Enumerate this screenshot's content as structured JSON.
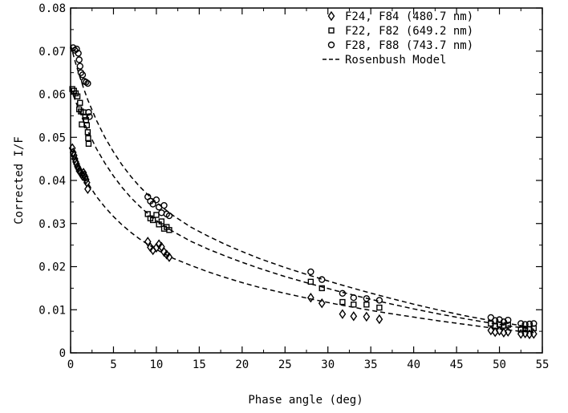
{
  "chart_data": {
    "type": "scatter",
    "title": "",
    "xlabel": "Phase angle (deg)",
    "ylabel": "Corrected I/F",
    "xlim": [
      0,
      55
    ],
    "ylim": [
      0,
      0.08
    ],
    "x_ticks": [
      "0",
      "5",
      "10",
      "15",
      "20",
      "25",
      "30",
      "35",
      "40",
      "45",
      "50",
      "55"
    ],
    "y_ticks": [
      "0",
      "0.01",
      "0.02",
      "0.03",
      "0.04",
      "0.05",
      "0.06",
      "0.07",
      "0.08"
    ],
    "grid": false,
    "legend_position": "top-right",
    "series": [
      {
        "name": "F24, F84 (480.7 nm)",
        "marker": "diamond",
        "points": [
          [
            0.2,
            0.0475
          ],
          [
            0.3,
            0.0465
          ],
          [
            0.4,
            0.0458
          ],
          [
            0.5,
            0.045
          ],
          [
            0.6,
            0.0443
          ],
          [
            0.7,
            0.0438
          ],
          [
            0.8,
            0.0432
          ],
          [
            0.9,
            0.0428
          ],
          [
            1.0,
            0.0422
          ],
          [
            1.1,
            0.042
          ],
          [
            1.2,
            0.0418
          ],
          [
            1.3,
            0.0414
          ],
          [
            1.4,
            0.041
          ],
          [
            1.5,
            0.0418
          ],
          [
            1.6,
            0.0412
          ],
          [
            1.7,
            0.0408
          ],
          [
            1.8,
            0.0402
          ],
          [
            1.9,
            0.0395
          ],
          [
            2.0,
            0.038
          ],
          [
            9.0,
            0.0258
          ],
          [
            9.3,
            0.0245
          ],
          [
            9.6,
            0.0238
          ],
          [
            10.0,
            0.0244
          ],
          [
            10.3,
            0.0252
          ],
          [
            10.6,
            0.0246
          ],
          [
            10.9,
            0.0234
          ],
          [
            11.2,
            0.0228
          ],
          [
            11.5,
            0.0222
          ],
          [
            28.0,
            0.0128
          ],
          [
            29.3,
            0.0115
          ],
          [
            31.7,
            0.009
          ],
          [
            33.0,
            0.0085
          ],
          [
            34.5,
            0.0084
          ],
          [
            36.0,
            0.0078
          ],
          [
            49.0,
            0.0052
          ],
          [
            49.5,
            0.0048
          ],
          [
            50.0,
            0.0051
          ],
          [
            50.5,
            0.0047
          ],
          [
            51.0,
            0.0049
          ],
          [
            52.5,
            0.0044
          ],
          [
            53.0,
            0.0045
          ],
          [
            53.5,
            0.0043
          ],
          [
            54.0,
            0.0044
          ]
        ]
      },
      {
        "name": "F22, F82 (649.2 nm)",
        "marker": "square",
        "points": [
          [
            0.2,
            0.0612
          ],
          [
            0.4,
            0.0608
          ],
          [
            0.6,
            0.0602
          ],
          [
            0.8,
            0.0595
          ],
          [
            1.0,
            0.0565
          ],
          [
            1.1,
            0.058
          ],
          [
            1.2,
            0.056
          ],
          [
            1.3,
            0.053
          ],
          [
            1.5,
            0.0558
          ],
          [
            1.7,
            0.0548
          ],
          [
            1.8,
            0.054
          ],
          [
            1.9,
            0.0528
          ],
          [
            2.0,
            0.0512
          ],
          [
            2.05,
            0.0498
          ],
          [
            2.1,
            0.0485
          ],
          [
            9.0,
            0.0322
          ],
          [
            9.3,
            0.0312
          ],
          [
            9.6,
            0.0308
          ],
          [
            10.0,
            0.032
          ],
          [
            10.3,
            0.0298
          ],
          [
            10.6,
            0.0305
          ],
          [
            10.9,
            0.0288
          ],
          [
            11.2,
            0.0292
          ],
          [
            11.5,
            0.0285
          ],
          [
            28.0,
            0.0165
          ],
          [
            29.3,
            0.015
          ],
          [
            31.7,
            0.0118
          ],
          [
            33.0,
            0.0112
          ],
          [
            34.5,
            0.0112
          ],
          [
            36.0,
            0.0105
          ],
          [
            49.0,
            0.0068
          ],
          [
            49.5,
            0.0062
          ],
          [
            50.0,
            0.0066
          ],
          [
            50.5,
            0.0063
          ],
          [
            51.0,
            0.0065
          ],
          [
            52.5,
            0.0054
          ],
          [
            53.0,
            0.0056
          ],
          [
            53.5,
            0.0055
          ],
          [
            54.0,
            0.0057
          ]
        ]
      },
      {
        "name": "F28, F88 (743.7 nm)",
        "marker": "circle",
        "points": [
          [
            0.3,
            0.0708
          ],
          [
            0.5,
            0.0702
          ],
          [
            0.7,
            0.0705
          ],
          [
            0.9,
            0.0695
          ],
          [
            1.0,
            0.068
          ],
          [
            1.1,
            0.0665
          ],
          [
            1.2,
            0.065
          ],
          [
            1.4,
            0.0645
          ],
          [
            1.6,
            0.063
          ],
          [
            1.8,
            0.0628
          ],
          [
            2.0,
            0.0625
          ],
          [
            2.1,
            0.0558
          ],
          [
            2.2,
            0.0548
          ],
          [
            9.0,
            0.0362
          ],
          [
            9.3,
            0.0352
          ],
          [
            9.6,
            0.0345
          ],
          [
            10.0,
            0.0355
          ],
          [
            10.3,
            0.0338
          ],
          [
            10.6,
            0.0325
          ],
          [
            10.9,
            0.0342
          ],
          [
            11.2,
            0.0322
          ],
          [
            11.5,
            0.0318
          ],
          [
            28.0,
            0.0188
          ],
          [
            29.3,
            0.017
          ],
          [
            31.7,
            0.0138
          ],
          [
            33.0,
            0.0128
          ],
          [
            34.5,
            0.0126
          ],
          [
            36.0,
            0.0122
          ],
          [
            49.0,
            0.0082
          ],
          [
            49.5,
            0.0075
          ],
          [
            50.0,
            0.0077
          ],
          [
            50.5,
            0.0072
          ],
          [
            51.0,
            0.0076
          ],
          [
            52.5,
            0.0068
          ],
          [
            53.0,
            0.0066
          ],
          [
            53.5,
            0.0067
          ],
          [
            54.0,
            0.0068
          ]
        ]
      },
      {
        "name": "Rosenbush Model",
        "marker": "dashed-line",
        "curves": [
          {
            "x": [
              0,
              0.5,
              1,
              1.5,
              2,
              3,
              4,
              5,
              6,
              7,
              8,
              9,
              10,
              11,
              12,
              14,
              16,
              18,
              20,
              22,
              25,
              28,
              31,
              34,
              37,
              40,
              43,
              46,
              49,
              52,
              54
            ],
            "y": [
              0.0475,
              0.0452,
              0.0431,
              0.0412,
              0.0394,
              0.0363,
              0.0338,
              0.0316,
              0.0297,
              0.028,
              0.0265,
              0.0252,
              0.024,
              0.0229,
              0.0219,
              0.0203,
              0.0188,
              0.0175,
              0.0163,
              0.0152,
              0.0138,
              0.0125,
              0.0113,
              0.0102,
              0.0092,
              0.0083,
              0.0074,
              0.0066,
              0.0058,
              0.0051,
              0.0047
            ]
          },
          {
            "x": [
              0,
              0.5,
              1,
              1.5,
              2,
              3,
              4,
              5,
              6,
              7,
              8,
              9,
              10,
              11,
              12,
              14,
              16,
              18,
              20,
              22,
              25,
              28,
              31,
              34,
              37,
              40,
              43,
              46,
              49,
              52,
              54
            ],
            "y": [
              0.0615,
              0.0588,
              0.0562,
              0.0538,
              0.0515,
              0.0474,
              0.044,
              0.041,
              0.0384,
              0.0361,
              0.0341,
              0.0323,
              0.0307,
              0.0293,
              0.0281,
              0.0259,
              0.0241,
              0.0225,
              0.021,
              0.0196,
              0.0177,
              0.016,
              0.0144,
              0.0129,
              0.0115,
              0.0102,
              0.009,
              0.0079,
              0.0069,
              0.006,
              0.0055
            ]
          },
          {
            "x": [
              0,
              0.5,
              1,
              1.5,
              2,
              3,
              4,
              5,
              6,
              7,
              8,
              9,
              10,
              11,
              12,
              14,
              16,
              18,
              20,
              22,
              25,
              28,
              31,
              34,
              37,
              40,
              43,
              46,
              49,
              52,
              54
            ],
            "y": [
              0.0715,
              0.0678,
              0.0645,
              0.0615,
              0.0587,
              0.054,
              0.05,
              0.0466,
              0.0436,
              0.041,
              0.0387,
              0.0367,
              0.0349,
              0.0333,
              0.0318,
              0.0292,
              0.0271,
              0.0252,
              0.0235,
              0.0219,
              0.0198,
              0.0179,
              0.0161,
              0.0144,
              0.0128,
              0.0113,
              0.0099,
              0.0086,
              0.0075,
              0.0065,
              0.0059
            ]
          }
        ]
      }
    ]
  }
}
